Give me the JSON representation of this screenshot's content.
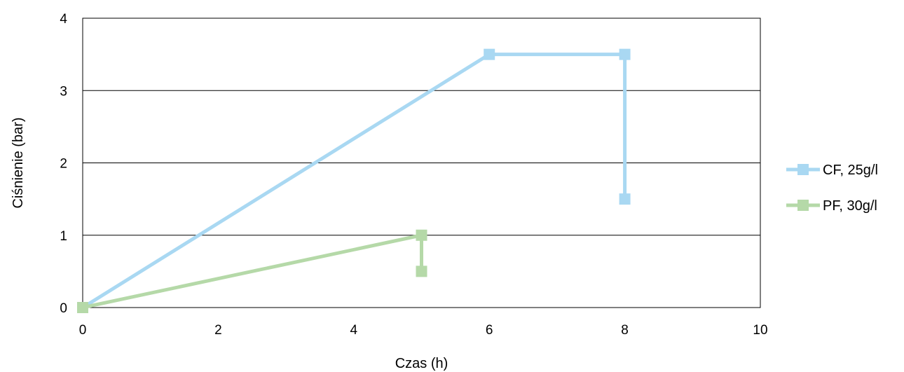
{
  "chart_data": {
    "type": "scatter",
    "title": "",
    "xlabel": "Czas (h)",
    "ylabel": "Ciśnienie (bar)",
    "xlim": [
      0,
      10
    ],
    "ylim": [
      0,
      4
    ],
    "x_ticks": [
      0,
      2,
      4,
      6,
      8,
      10
    ],
    "y_ticks": [
      0,
      1,
      2,
      3,
      4
    ],
    "x_tick_labels": [
      "0",
      "2",
      "4",
      "6",
      "8",
      "10"
    ],
    "y_tick_labels": [
      "0",
      "1",
      "2",
      "3",
      "4"
    ],
    "grid": "horizontal",
    "legend_position": "right",
    "series": [
      {
        "name": "CF, 25g/l",
        "color": "#a9d8f2",
        "marker": "square",
        "points": [
          [
            0,
            0
          ],
          [
            6,
            3.5
          ],
          [
            8,
            3.5
          ],
          [
            8,
            1.5
          ]
        ]
      },
      {
        "name": "PF, 30g/l",
        "color": "#b5d9a8",
        "marker": "square",
        "points": [
          [
            0,
            0
          ],
          [
            5,
            1
          ],
          [
            5,
            0.5
          ]
        ]
      }
    ]
  }
}
